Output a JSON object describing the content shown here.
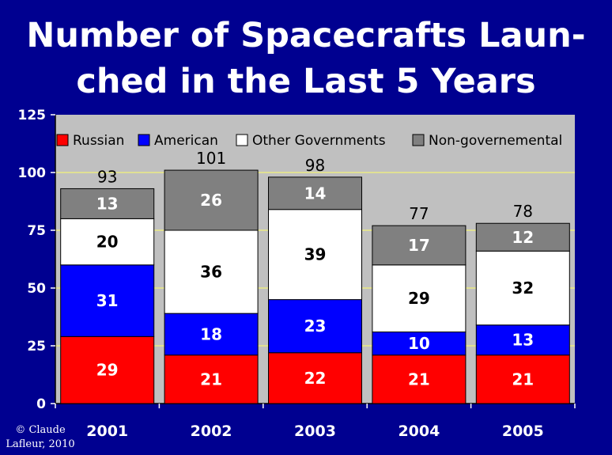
{
  "title_line1": "Number of Spacecrafts Laun-",
  "title_line2": "ched in the Last 5 Years",
  "credit_line1": "© Claude",
  "credit_line2": "Lafleur, 2010",
  "colors": {
    "background": "#000090",
    "plot_area": "#C0C0C0",
    "gridline": "#FFFF66"
  },
  "chart_data": {
    "type": "bar",
    "stacked": true,
    "categories": [
      "2001",
      "2002",
      "2003",
      "2004",
      "2005"
    ],
    "series": [
      {
        "name": "Russian",
        "color": "#FF0000",
        "label_color": "#FFFFFF",
        "values": [
          29,
          21,
          22,
          21,
          21
        ]
      },
      {
        "name": "American",
        "color": "#0000FF",
        "label_color": "#FFFFFF",
        "values": [
          31,
          18,
          23,
          10,
          13
        ]
      },
      {
        "name": "Other Governments",
        "color": "#FFFFFF",
        "label_color": "#000000",
        "values": [
          20,
          36,
          39,
          29,
          32
        ]
      },
      {
        "name": "Non-governemental",
        "color": "#808080",
        "label_color": "#FFFFFF",
        "values": [
          13,
          26,
          14,
          17,
          12
        ]
      }
    ],
    "totals": [
      "93",
      "101",
      "98",
      "77",
      "78"
    ],
    "ylim": [
      0,
      125
    ],
    "yticks": [
      "0",
      "25",
      "50",
      "75",
      "100",
      "125"
    ],
    "grid": true,
    "legend": "top"
  }
}
